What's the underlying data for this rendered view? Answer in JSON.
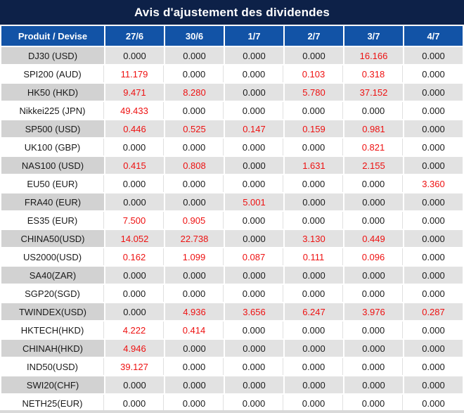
{
  "title": "Avis d'ajustement des dividendes",
  "chart_data": {
    "type": "table",
    "title": "Avis d'ajustement des dividendes",
    "columns": [
      "Produit / Devise",
      "27/6",
      "30/6",
      "1/7",
      "2/7",
      "3/7",
      "4/7"
    ],
    "rows": [
      {
        "product": "DJ30 (USD)",
        "values": [
          "0.000",
          "0.000",
          "0.000",
          "0.000",
          "16.166",
          "0.000"
        ]
      },
      {
        "product": "SPI200 (AUD)",
        "values": [
          "11.179",
          "0.000",
          "0.000",
          "0.103",
          "0.318",
          "0.000"
        ]
      },
      {
        "product": "HK50 (HKD)",
        "values": [
          "9.471",
          "8.280",
          "0.000",
          "5.780",
          "37.152",
          "0.000"
        ]
      },
      {
        "product": "Nikkei225 (JPN)",
        "values": [
          "49.433",
          "0.000",
          "0.000",
          "0.000",
          "0.000",
          "0.000"
        ]
      },
      {
        "product": "SP500 (USD)",
        "values": [
          "0.446",
          "0.525",
          "0.147",
          "0.159",
          "0.981",
          "0.000"
        ]
      },
      {
        "product": "UK100 (GBP)",
        "values": [
          "0.000",
          "0.000",
          "0.000",
          "0.000",
          "0.821",
          "0.000"
        ]
      },
      {
        "product": "NAS100 (USD)",
        "values": [
          "0.415",
          "0.808",
          "0.000",
          "1.631",
          "2.155",
          "0.000"
        ]
      },
      {
        "product": "EU50 (EUR)",
        "values": [
          "0.000",
          "0.000",
          "0.000",
          "0.000",
          "0.000",
          "3.360"
        ]
      },
      {
        "product": "FRA40 (EUR)",
        "values": [
          "0.000",
          "0.000",
          "5.001",
          "0.000",
          "0.000",
          "0.000"
        ]
      },
      {
        "product": "ES35 (EUR)",
        "values": [
          "7.500",
          "0.905",
          "0.000",
          "0.000",
          "0.000",
          "0.000"
        ]
      },
      {
        "product": "CHINA50(USD)",
        "values": [
          "14.052",
          "22.738",
          "0.000",
          "3.130",
          "0.449",
          "0.000"
        ]
      },
      {
        "product": "US2000(USD)",
        "values": [
          "0.162",
          "1.099",
          "0.087",
          "0.111",
          "0.096",
          "0.000"
        ]
      },
      {
        "product": "SA40(ZAR)",
        "values": [
          "0.000",
          "0.000",
          "0.000",
          "0.000",
          "0.000",
          "0.000"
        ]
      },
      {
        "product": "SGP20(SGD)",
        "values": [
          "0.000",
          "0.000",
          "0.000",
          "0.000",
          "0.000",
          "0.000"
        ]
      },
      {
        "product": "TWINDEX(USD)",
        "values": [
          "0.000",
          "4.936",
          "3.656",
          "6.247",
          "3.976",
          "0.287"
        ]
      },
      {
        "product": "HKTECH(HKD)",
        "values": [
          "4.222",
          "0.414",
          "0.000",
          "0.000",
          "0.000",
          "0.000"
        ]
      },
      {
        "product": "CHINAH(HKD)",
        "values": [
          "4.946",
          "0.000",
          "0.000",
          "0.000",
          "0.000",
          "0.000"
        ]
      },
      {
        "product": "IND50(USD)",
        "values": [
          "39.127",
          "0.000",
          "0.000",
          "0.000",
          "0.000",
          "0.000"
        ]
      },
      {
        "product": "SWI20(CHF)",
        "values": [
          "0.000",
          "0.000",
          "0.000",
          "0.000",
          "0.000",
          "0.000"
        ]
      },
      {
        "product": "NETH25(EUR)",
        "values": [
          "0.000",
          "0.000",
          "0.000",
          "0.000",
          "0.000",
          "0.000"
        ]
      }
    ],
    "layout_hints": {
      "zero_value_color": "#1a1a1a",
      "nonzero_value_color": "#ee1111",
      "striped_rows": true
    }
  },
  "colors": {
    "title_bg": "#0d2148",
    "header_bg": "#1253a6",
    "row_label_gray": "#d2d2d2",
    "row_value_gray": "#e2e2e2",
    "row_white": "#ffffff",
    "text_dark": "#1a1a1a",
    "value_red": "#ee1111",
    "separator_light": "#e0e0e0",
    "bottom_border": "#d9d9d9"
  }
}
